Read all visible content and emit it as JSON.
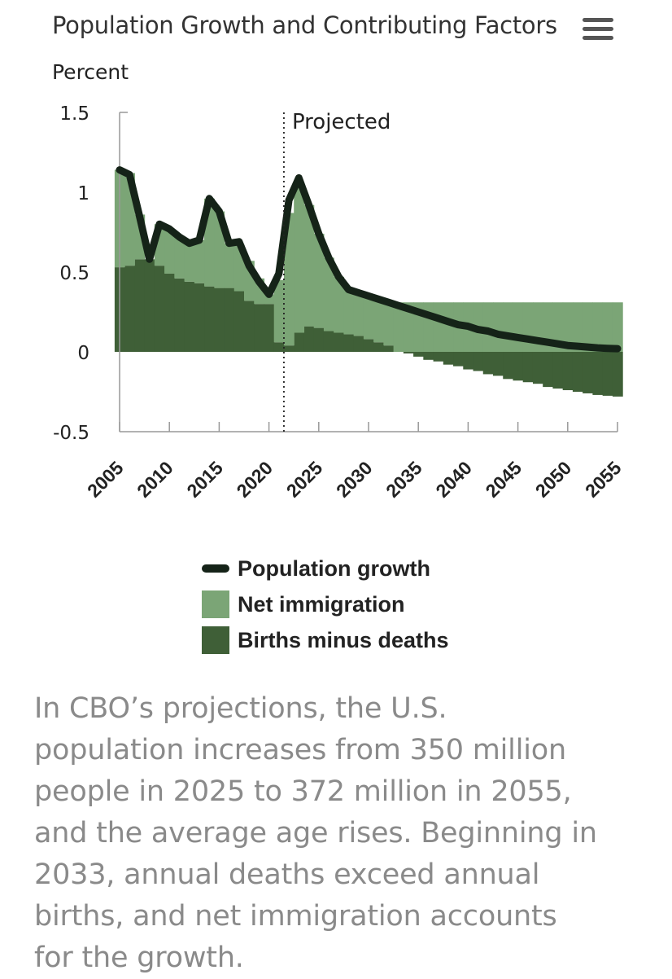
{
  "header": {
    "title": "Population Growth and Contributing Factors",
    "menu_icon": "hamburger-menu-icon"
  },
  "colors": {
    "net_immigration": "#7ba576",
    "births_minus_deaths": "#3f5f37",
    "population_growth": "#152318"
  },
  "chart_data": {
    "type": "area",
    "title": "Population Growth and Contributing Factors",
    "ylabel": "Percent",
    "xlabel": "",
    "ylim": [
      -0.5,
      1.5
    ],
    "yticks": [
      "1.5",
      "1",
      "0.5",
      "0",
      "-0.5"
    ],
    "ytick_values": [
      1.5,
      1,
      0.5,
      0,
      -0.5
    ],
    "xlim": [
      2005,
      2055
    ],
    "xticks": [
      2005,
      2010,
      2015,
      2020,
      2025,
      2030,
      2035,
      2040,
      2045,
      2050,
      2055
    ],
    "annotation": {
      "text": "Projected",
      "x": 2021.5
    },
    "x": [
      2005,
      2006,
      2007,
      2008,
      2009,
      2010,
      2011,
      2012,
      2013,
      2014,
      2015,
      2016,
      2017,
      2018,
      2019,
      2020,
      2021,
      2022,
      2023,
      2024,
      2025,
      2026,
      2027,
      2028,
      2029,
      2030,
      2031,
      2032,
      2033,
      2034,
      2035,
      2036,
      2037,
      2038,
      2039,
      2040,
      2041,
      2042,
      2043,
      2044,
      2045,
      2046,
      2047,
      2048,
      2049,
      2050,
      2051,
      2052,
      2053,
      2054,
      2055
    ],
    "series": [
      {
        "name": "Population growth",
        "kind": "line",
        "values": [
          1.14,
          1.11,
          0.85,
          0.58,
          0.8,
          0.77,
          0.72,
          0.68,
          0.7,
          0.96,
          0.88,
          0.68,
          0.69,
          0.54,
          0.44,
          0.36,
          0.49,
          0.95,
          1.09,
          0.92,
          0.74,
          0.59,
          0.47,
          0.39,
          0.37,
          0.35,
          0.33,
          0.31,
          0.29,
          0.27,
          0.25,
          0.23,
          0.21,
          0.19,
          0.17,
          0.16,
          0.14,
          0.13,
          0.11,
          0.1,
          0.09,
          0.08,
          0.07,
          0.06,
          0.05,
          0.04,
          0.035,
          0.03,
          0.025,
          0.022,
          0.02
        ]
      },
      {
        "name": "Net immigration",
        "kind": "area",
        "values": [
          0.61,
          0.58,
          0.28,
          0.0,
          0.26,
          0.28,
          0.26,
          0.24,
          0.27,
          0.55,
          0.48,
          0.28,
          0.29,
          0.25,
          0.16,
          0.06,
          0.39,
          0.83,
          0.94,
          0.76,
          0.59,
          0.46,
          0.35,
          0.28,
          0.27,
          0.27,
          0.26,
          0.27,
          0.31,
          0.31,
          0.31,
          0.31,
          0.31,
          0.31,
          0.31,
          0.31,
          0.31,
          0.31,
          0.31,
          0.31,
          0.31,
          0.31,
          0.31,
          0.31,
          0.31,
          0.31,
          0.31,
          0.31,
          0.31,
          0.31,
          0.31
        ]
      },
      {
        "name": "Births minus deaths",
        "kind": "area",
        "values": [
          0.53,
          0.54,
          0.58,
          0.58,
          0.54,
          0.49,
          0.46,
          0.44,
          0.43,
          0.41,
          0.4,
          0.4,
          0.38,
          0.32,
          0.3,
          0.3,
          0.06,
          0.04,
          0.12,
          0.16,
          0.15,
          0.13,
          0.12,
          0.11,
          0.1,
          0.08,
          0.06,
          0.04,
          0.0,
          -0.01,
          -0.03,
          -0.05,
          -0.06,
          -0.08,
          -0.09,
          -0.11,
          -0.12,
          -0.14,
          -0.15,
          -0.17,
          -0.18,
          -0.19,
          -0.2,
          -0.22,
          -0.23,
          -0.24,
          -0.25,
          -0.26,
          -0.27,
          -0.275,
          -0.28
        ]
      }
    ],
    "legend": [
      {
        "label": "Population growth",
        "kind": "line"
      },
      {
        "label": "Net immigration",
        "kind": "area"
      },
      {
        "label": "Births minus deaths",
        "kind": "area"
      }
    ]
  },
  "caption": "In CBO’s projections, the U.S. population increases from 350 million people in 2025 to 372 million in 2055, and the average age rises. Beginning in 2033, annual deaths exceed annual births, and net immigration accounts for the growth."
}
